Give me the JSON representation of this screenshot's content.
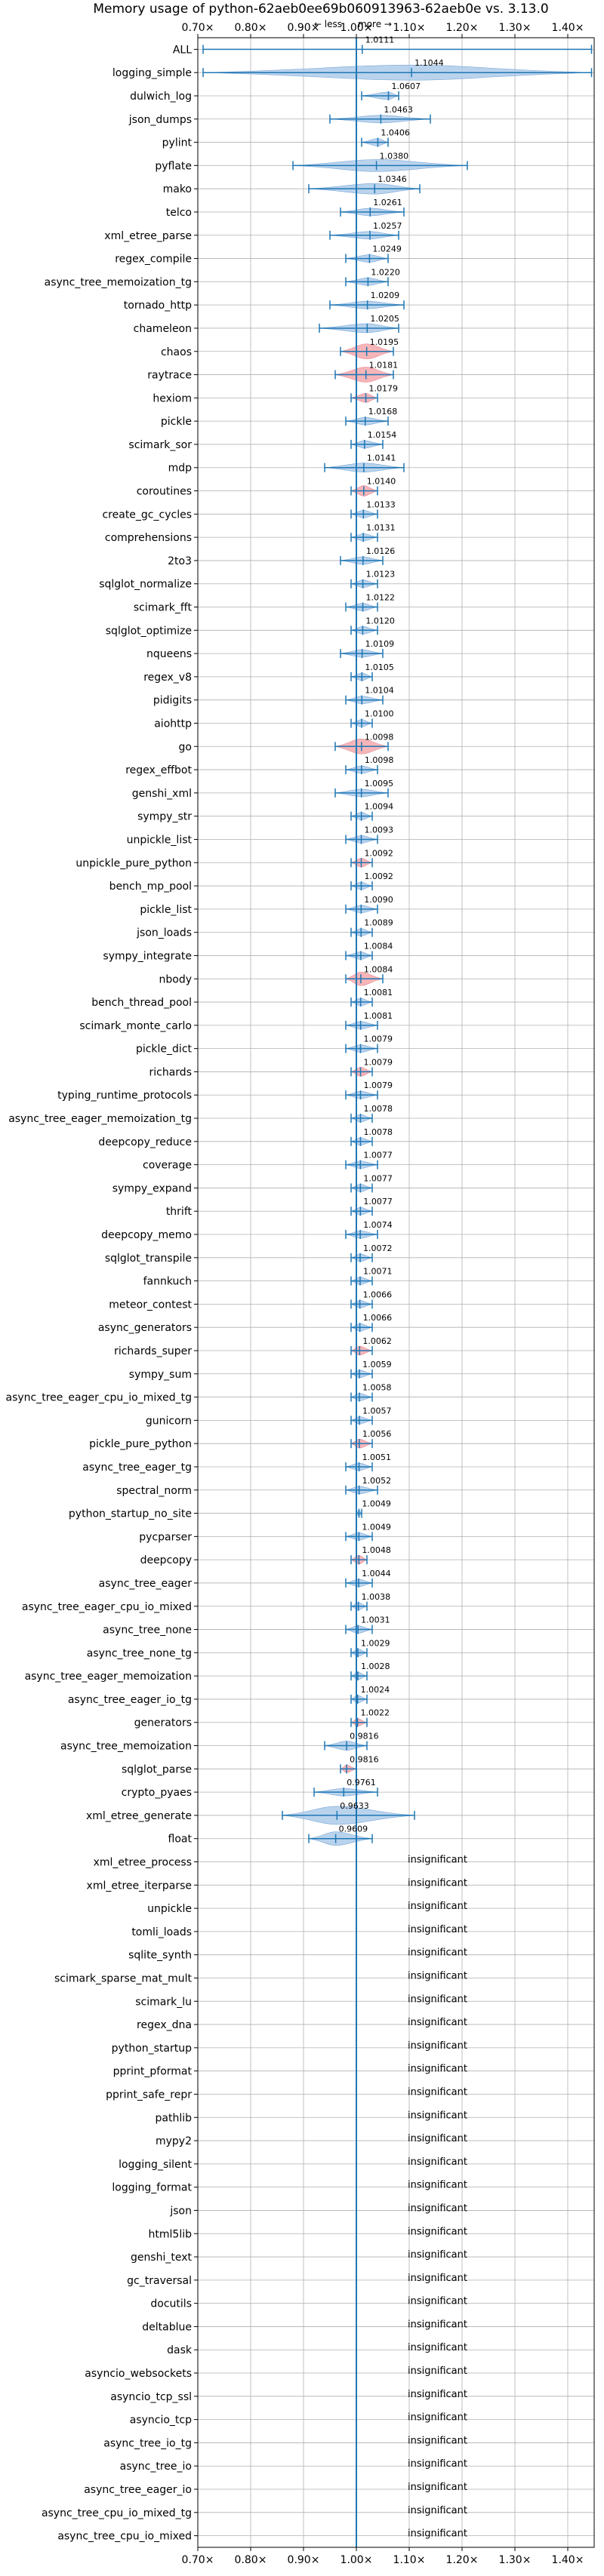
{
  "chart_data": {
    "type": "violin",
    "title": "Memory usage of python-62aeb0ee69b060913963-62aeb0e vs. 3.13.0",
    "direction_labels": {
      "less": "← less",
      "more": "more →"
    },
    "xlim": [
      0.7,
      1.45
    ],
    "x_ticks": [
      0.7,
      0.8,
      0.9,
      1.0,
      1.1,
      1.2,
      1.3,
      1.4
    ],
    "x_tick_labels": [
      "0.70×",
      "0.80×",
      "0.90×",
      "1.00×",
      "1.10×",
      "1.20×",
      "1.30×",
      "1.40×"
    ],
    "insignificant_label": "insignificant",
    "benchmarks": [
      {
        "name": "ALL",
        "value": 1.0111,
        "label": "1.0111",
        "lo": 0.71,
        "hi": 1.445,
        "violin_w": 0,
        "highlight": false
      },
      {
        "name": "logging_simple",
        "value": 1.1044,
        "label": "1.1044",
        "lo": 0.71,
        "hi": 1.445,
        "violin_w": 10,
        "highlight": false
      },
      {
        "name": "dulwich_log",
        "value": 1.0607,
        "label": "1.0607",
        "lo": 1.01,
        "hi": 1.08,
        "violin_w": 5,
        "highlight": false
      },
      {
        "name": "json_dumps",
        "value": 1.0463,
        "label": "1.0463",
        "lo": 0.95,
        "hi": 1.14,
        "violin_w": 5,
        "highlight": false
      },
      {
        "name": "pylint",
        "value": 1.0406,
        "label": "1.0406",
        "lo": 1.01,
        "hi": 1.06,
        "violin_w": 5,
        "highlight": false
      },
      {
        "name": "pyflate",
        "value": 1.038,
        "label": "1.0380",
        "lo": 0.88,
        "hi": 1.21,
        "violin_w": 8,
        "highlight": false
      },
      {
        "name": "mako",
        "value": 1.0346,
        "label": "1.0346",
        "lo": 0.91,
        "hi": 1.12,
        "violin_w": 7,
        "highlight": false
      },
      {
        "name": "telco",
        "value": 1.0261,
        "label": "1.0261",
        "lo": 0.97,
        "hi": 1.09,
        "violin_w": 5,
        "highlight": false
      },
      {
        "name": "xml_etree_parse",
        "value": 1.0257,
        "label": "1.0257",
        "lo": 0.95,
        "hi": 1.08,
        "violin_w": 5,
        "highlight": false
      },
      {
        "name": "regex_compile",
        "value": 1.0249,
        "label": "1.0249",
        "lo": 0.98,
        "hi": 1.06,
        "violin_w": 5,
        "highlight": false
      },
      {
        "name": "async_tree_memoization_tg",
        "value": 1.022,
        "label": "1.0220",
        "lo": 0.98,
        "hi": 1.06,
        "violin_w": 5,
        "highlight": false
      },
      {
        "name": "tornado_http",
        "value": 1.0209,
        "label": "1.0209",
        "lo": 0.95,
        "hi": 1.09,
        "violin_w": 5,
        "highlight": false
      },
      {
        "name": "chameleon",
        "value": 1.0205,
        "label": "1.0205",
        "lo": 0.93,
        "hi": 1.08,
        "violin_w": 6,
        "highlight": false
      },
      {
        "name": "chaos",
        "value": 1.0195,
        "label": "1.0195",
        "lo": 0.97,
        "hi": 1.07,
        "violin_w": 10,
        "highlight": true
      },
      {
        "name": "raytrace",
        "value": 1.0181,
        "label": "1.0181",
        "lo": 0.96,
        "hi": 1.07,
        "violin_w": 10,
        "highlight": true
      },
      {
        "name": "hexiom",
        "value": 1.0179,
        "label": "1.0179",
        "lo": 0.99,
        "hi": 1.04,
        "violin_w": 6,
        "highlight": true
      },
      {
        "name": "pickle",
        "value": 1.0168,
        "label": "1.0168",
        "lo": 0.98,
        "hi": 1.06,
        "violin_w": 5,
        "highlight": false
      },
      {
        "name": "scimark_sor",
        "value": 1.0154,
        "label": "1.0154",
        "lo": 0.99,
        "hi": 1.05,
        "violin_w": 5,
        "highlight": false
      },
      {
        "name": "mdp",
        "value": 1.0141,
        "label": "1.0141",
        "lo": 0.94,
        "hi": 1.09,
        "violin_w": 6,
        "highlight": false
      },
      {
        "name": "coroutines",
        "value": 1.014,
        "label": "1.0140",
        "lo": 0.99,
        "hi": 1.04,
        "violin_w": 7,
        "highlight": true
      },
      {
        "name": "create_gc_cycles",
        "value": 1.0133,
        "label": "1.0133",
        "lo": 0.99,
        "hi": 1.04,
        "violin_w": 5,
        "highlight": false
      },
      {
        "name": "comprehensions",
        "value": 1.0131,
        "label": "1.0131",
        "lo": 0.99,
        "hi": 1.04,
        "violin_w": 5,
        "highlight": false
      },
      {
        "name": "2to3",
        "value": 1.0126,
        "label": "1.0126",
        "lo": 0.97,
        "hi": 1.05,
        "violin_w": 5,
        "highlight": false
      },
      {
        "name": "sqlglot_normalize",
        "value": 1.0123,
        "label": "1.0123",
        "lo": 0.99,
        "hi": 1.04,
        "violin_w": 5,
        "highlight": false
      },
      {
        "name": "scimark_fft",
        "value": 1.0122,
        "label": "1.0122",
        "lo": 0.98,
        "hi": 1.04,
        "violin_w": 5,
        "highlight": false
      },
      {
        "name": "sqlglot_optimize",
        "value": 1.012,
        "label": "1.0120",
        "lo": 0.99,
        "hi": 1.04,
        "violin_w": 5,
        "highlight": false
      },
      {
        "name": "nqueens",
        "value": 1.0109,
        "label": "1.0109",
        "lo": 0.97,
        "hi": 1.05,
        "violin_w": 5,
        "highlight": false
      },
      {
        "name": "regex_v8",
        "value": 1.0105,
        "label": "1.0105",
        "lo": 0.99,
        "hi": 1.03,
        "violin_w": 5,
        "highlight": false
      },
      {
        "name": "pidigits",
        "value": 1.0104,
        "label": "1.0104",
        "lo": 0.98,
        "hi": 1.05,
        "violin_w": 5,
        "highlight": false
      },
      {
        "name": "aiohttp",
        "value": 1.01,
        "label": "1.0100",
        "lo": 0.99,
        "hi": 1.03,
        "violin_w": 5,
        "highlight": false
      },
      {
        "name": "go",
        "value": 1.0098,
        "label": "1.0098",
        "lo": 0.96,
        "hi": 1.06,
        "violin_w": 10,
        "highlight": true
      },
      {
        "name": "regex_effbot",
        "value": 1.0098,
        "label": "1.0098",
        "lo": 0.98,
        "hi": 1.04,
        "violin_w": 5,
        "highlight": false
      },
      {
        "name": "genshi_xml",
        "value": 1.0095,
        "label": "1.0095",
        "lo": 0.96,
        "hi": 1.06,
        "violin_w": 5,
        "highlight": false
      },
      {
        "name": "sympy_str",
        "value": 1.0094,
        "label": "1.0094",
        "lo": 0.99,
        "hi": 1.03,
        "violin_w": 5,
        "highlight": false
      },
      {
        "name": "unpickle_list",
        "value": 1.0093,
        "label": "1.0093",
        "lo": 0.98,
        "hi": 1.04,
        "violin_w": 5,
        "highlight": false
      },
      {
        "name": "unpickle_pure_python",
        "value": 1.0092,
        "label": "1.0092",
        "lo": 0.99,
        "hi": 1.03,
        "violin_w": 6,
        "highlight": true
      },
      {
        "name": "bench_mp_pool",
        "value": 1.0092,
        "label": "1.0092",
        "lo": 0.99,
        "hi": 1.03,
        "violin_w": 5,
        "highlight": false
      },
      {
        "name": "pickle_list",
        "value": 1.009,
        "label": "1.0090",
        "lo": 0.98,
        "hi": 1.04,
        "violin_w": 5,
        "highlight": false
      },
      {
        "name": "json_loads",
        "value": 1.0089,
        "label": "1.0089",
        "lo": 0.99,
        "hi": 1.03,
        "violin_w": 5,
        "highlight": false
      },
      {
        "name": "sympy_integrate",
        "value": 1.0084,
        "label": "1.0084",
        "lo": 0.98,
        "hi": 1.03,
        "violin_w": 5,
        "highlight": false
      },
      {
        "name": "nbody",
        "value": 1.0084,
        "label": "1.0084",
        "lo": 0.98,
        "hi": 1.05,
        "violin_w": 9,
        "highlight": true
      },
      {
        "name": "bench_thread_pool",
        "value": 1.0081,
        "label": "1.0081",
        "lo": 0.99,
        "hi": 1.03,
        "violin_w": 5,
        "highlight": false
      },
      {
        "name": "scimark_monte_carlo",
        "value": 1.0081,
        "label": "1.0081",
        "lo": 0.98,
        "hi": 1.04,
        "violin_w": 5,
        "highlight": false
      },
      {
        "name": "pickle_dict",
        "value": 1.0079,
        "label": "1.0079",
        "lo": 0.98,
        "hi": 1.04,
        "violin_w": 5,
        "highlight": false
      },
      {
        "name": "richards",
        "value": 1.0079,
        "label": "1.0079",
        "lo": 0.99,
        "hi": 1.03,
        "violin_w": 6,
        "highlight": true
      },
      {
        "name": "typing_runtime_protocols",
        "value": 1.0079,
        "label": "1.0079",
        "lo": 0.98,
        "hi": 1.04,
        "violin_w": 5,
        "highlight": false
      },
      {
        "name": "async_tree_eager_memoization_tg",
        "value": 1.0078,
        "label": "1.0078",
        "lo": 0.99,
        "hi": 1.03,
        "violin_w": 5,
        "highlight": false
      },
      {
        "name": "deepcopy_reduce",
        "value": 1.0078,
        "label": "1.0078",
        "lo": 0.99,
        "hi": 1.03,
        "violin_w": 5,
        "highlight": false
      },
      {
        "name": "coverage",
        "value": 1.0077,
        "label": "1.0077",
        "lo": 0.98,
        "hi": 1.04,
        "violin_w": 5,
        "highlight": false
      },
      {
        "name": "sympy_expand",
        "value": 1.0077,
        "label": "1.0077",
        "lo": 0.99,
        "hi": 1.03,
        "violin_w": 5,
        "highlight": false
      },
      {
        "name": "thrift",
        "value": 1.0077,
        "label": "1.0077",
        "lo": 0.99,
        "hi": 1.03,
        "violin_w": 5,
        "highlight": false
      },
      {
        "name": "deepcopy_memo",
        "value": 1.0074,
        "label": "1.0074",
        "lo": 0.98,
        "hi": 1.04,
        "violin_w": 5,
        "highlight": false
      },
      {
        "name": "sqlglot_transpile",
        "value": 1.0072,
        "label": "1.0072",
        "lo": 0.99,
        "hi": 1.03,
        "violin_w": 5,
        "highlight": false
      },
      {
        "name": "fannkuch",
        "value": 1.0071,
        "label": "1.0071",
        "lo": 0.99,
        "hi": 1.03,
        "violin_w": 5,
        "highlight": false
      },
      {
        "name": "meteor_contest",
        "value": 1.0066,
        "label": "1.0066",
        "lo": 0.99,
        "hi": 1.03,
        "violin_w": 5,
        "highlight": false
      },
      {
        "name": "async_generators",
        "value": 1.0066,
        "label": "1.0066",
        "lo": 0.99,
        "hi": 1.03,
        "violin_w": 5,
        "highlight": false
      },
      {
        "name": "richards_super",
        "value": 1.0062,
        "label": "1.0062",
        "lo": 0.99,
        "hi": 1.03,
        "violin_w": 6,
        "highlight": true
      },
      {
        "name": "sympy_sum",
        "value": 1.0059,
        "label": "1.0059",
        "lo": 0.99,
        "hi": 1.03,
        "violin_w": 5,
        "highlight": false
      },
      {
        "name": "async_tree_eager_cpu_io_mixed_tg",
        "value": 1.0058,
        "label": "1.0058",
        "lo": 0.99,
        "hi": 1.03,
        "violin_w": 5,
        "highlight": false
      },
      {
        "name": "gunicorn",
        "value": 1.0057,
        "label": "1.0057",
        "lo": 0.99,
        "hi": 1.03,
        "violin_w": 5,
        "highlight": false
      },
      {
        "name": "pickle_pure_python",
        "value": 1.0056,
        "label": "1.0056",
        "lo": 0.99,
        "hi": 1.03,
        "violin_w": 6,
        "highlight": true
      },
      {
        "name": "async_tree_eager_tg",
        "value": 1.0051,
        "label": "1.0051",
        "lo": 0.98,
        "hi": 1.03,
        "violin_w": 5,
        "highlight": false
      },
      {
        "name": "spectral_norm",
        "value": 1.0052,
        "label": "1.0052",
        "lo": 0.98,
        "hi": 1.04,
        "violin_w": 5,
        "highlight": false
      },
      {
        "name": "python_startup_no_site",
        "value": 1.0049,
        "label": "1.0049",
        "lo": 1.0,
        "hi": 1.01,
        "violin_w": 4,
        "highlight": false
      },
      {
        "name": "pycparser",
        "value": 1.0049,
        "label": "1.0049",
        "lo": 0.98,
        "hi": 1.03,
        "violin_w": 5,
        "highlight": false
      },
      {
        "name": "deepcopy",
        "value": 1.0048,
        "label": "1.0048",
        "lo": 0.99,
        "hi": 1.02,
        "violin_w": 6,
        "highlight": true
      },
      {
        "name": "async_tree_eager",
        "value": 1.0044,
        "label": "1.0044",
        "lo": 0.98,
        "hi": 1.03,
        "violin_w": 5,
        "highlight": false
      },
      {
        "name": "async_tree_eager_cpu_io_mixed",
        "value": 1.0038,
        "label": "1.0038",
        "lo": 0.99,
        "hi": 1.02,
        "violin_w": 5,
        "highlight": false
      },
      {
        "name": "async_tree_none",
        "value": 1.0031,
        "label": "1.0031",
        "lo": 0.98,
        "hi": 1.03,
        "violin_w": 5,
        "highlight": false
      },
      {
        "name": "async_tree_none_tg",
        "value": 1.0029,
        "label": "1.0029",
        "lo": 0.99,
        "hi": 1.02,
        "violin_w": 5,
        "highlight": false
      },
      {
        "name": "async_tree_eager_memoization",
        "value": 1.0028,
        "label": "1.0028",
        "lo": 0.99,
        "hi": 1.02,
        "violin_w": 5,
        "highlight": false
      },
      {
        "name": "async_tree_eager_io_tg",
        "value": 1.0024,
        "label": "1.0024",
        "lo": 0.99,
        "hi": 1.02,
        "violin_w": 5,
        "highlight": false
      },
      {
        "name": "generators",
        "value": 1.0022,
        "label": "1.0022",
        "lo": 0.99,
        "hi": 1.02,
        "violin_w": 5,
        "highlight": true
      },
      {
        "name": "async_tree_memoization",
        "value": 0.9816,
        "label": "0.9816",
        "lo": 0.94,
        "hi": 1.02,
        "violin_w": 6,
        "highlight": false
      },
      {
        "name": "sqlglot_parse",
        "value": 0.9816,
        "label": "0.9816",
        "lo": 0.97,
        "hi": 1.0,
        "violin_w": 5,
        "highlight": true
      },
      {
        "name": "crypto_pyaes",
        "value": 0.9761,
        "label": "0.9761",
        "lo": 0.92,
        "hi": 1.04,
        "violin_w": 5,
        "highlight": false
      },
      {
        "name": "xml_etree_generate",
        "value": 0.9633,
        "label": "0.9633",
        "lo": 0.86,
        "hi": 1.11,
        "violin_w": 12,
        "highlight": false
      },
      {
        "name": "float",
        "value": 0.9609,
        "label": "0.9609",
        "lo": 0.91,
        "hi": 1.03,
        "violin_w": 9,
        "highlight": false
      },
      {
        "name": "xml_etree_process",
        "value": null,
        "label": "insignificant"
      },
      {
        "name": "xml_etree_iterparse",
        "value": null,
        "label": "insignificant"
      },
      {
        "name": "unpickle",
        "value": null,
        "label": "insignificant"
      },
      {
        "name": "tomli_loads",
        "value": null,
        "label": "insignificant"
      },
      {
        "name": "sqlite_synth",
        "value": null,
        "label": "insignificant"
      },
      {
        "name": "scimark_sparse_mat_mult",
        "value": null,
        "label": "insignificant"
      },
      {
        "name": "scimark_lu",
        "value": null,
        "label": "insignificant"
      },
      {
        "name": "regex_dna",
        "value": null,
        "label": "insignificant"
      },
      {
        "name": "python_startup",
        "value": null,
        "label": "insignificant"
      },
      {
        "name": "pprint_pformat",
        "value": null,
        "label": "insignificant"
      },
      {
        "name": "pprint_safe_repr",
        "value": null,
        "label": "insignificant"
      },
      {
        "name": "pathlib",
        "value": null,
        "label": "insignificant"
      },
      {
        "name": "mypy2",
        "value": null,
        "label": "insignificant"
      },
      {
        "name": "logging_silent",
        "value": null,
        "label": "insignificant"
      },
      {
        "name": "logging_format",
        "value": null,
        "label": "insignificant"
      },
      {
        "name": "json",
        "value": null,
        "label": "insignificant"
      },
      {
        "name": "html5lib",
        "value": null,
        "label": "insignificant"
      },
      {
        "name": "genshi_text",
        "value": null,
        "label": "insignificant"
      },
      {
        "name": "gc_traversal",
        "value": null,
        "label": "insignificant"
      },
      {
        "name": "docutils",
        "value": null,
        "label": "insignificant"
      },
      {
        "name": "deltablue",
        "value": null,
        "label": "insignificant"
      },
      {
        "name": "dask",
        "value": null,
        "label": "insignificant"
      },
      {
        "name": "asyncio_websockets",
        "value": null,
        "label": "insignificant"
      },
      {
        "name": "asyncio_tcp_ssl",
        "value": null,
        "label": "insignificant"
      },
      {
        "name": "asyncio_tcp",
        "value": null,
        "label": "insignificant"
      },
      {
        "name": "async_tree_io_tg",
        "value": null,
        "label": "insignificant"
      },
      {
        "name": "async_tree_io",
        "value": null,
        "label": "insignificant"
      },
      {
        "name": "async_tree_eager_io",
        "value": null,
        "label": "insignificant"
      },
      {
        "name": "async_tree_cpu_io_mixed_tg",
        "value": null,
        "label": "insignificant"
      },
      {
        "name": "async_tree_cpu_io_mixed",
        "value": null,
        "label": "insignificant"
      }
    ],
    "colors": {
      "violin_fill": "#a9c8e8",
      "violin_edge": "#7aa6d6",
      "highlight_fill": "#f4a3a8",
      "whisker": "#1f77b4",
      "grid": "#b0b0b0",
      "text": "#000000"
    },
    "grid": true
  }
}
